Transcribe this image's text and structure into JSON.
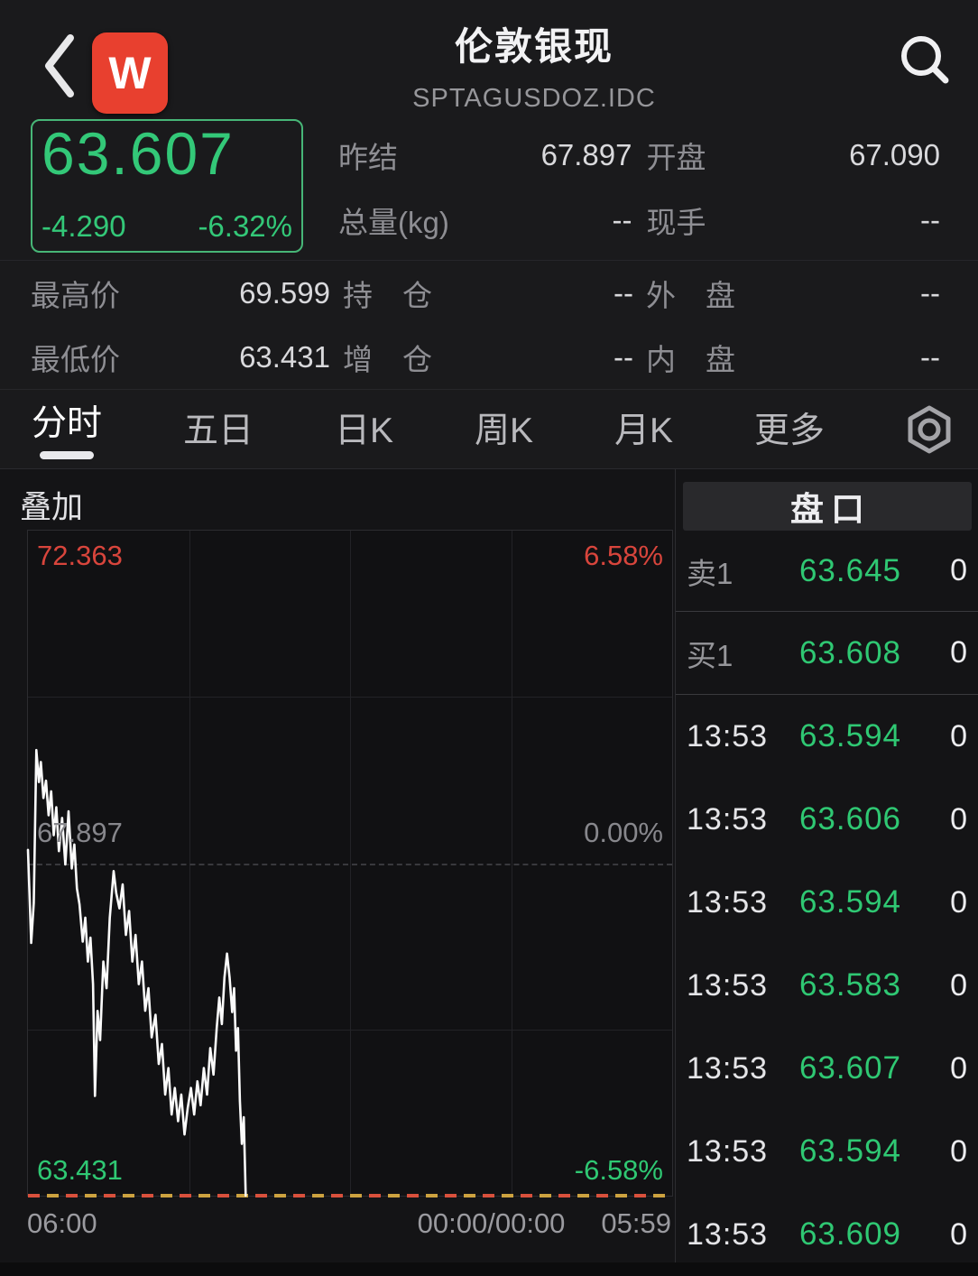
{
  "header": {
    "title": "伦敦银现",
    "symbol": "SPTAGUSDOZ.IDC",
    "logo_text": "W"
  },
  "quote": {
    "last": "63.607",
    "change": "-4.290",
    "change_pct": "-6.32%"
  },
  "stats": {
    "r1": [
      {
        "l": "昨结",
        "v": "67.897"
      },
      {
        "l": "开盘",
        "v": "67.090"
      }
    ],
    "r2": [
      {
        "l": "总量(kg)",
        "v": "--"
      },
      {
        "l": "现手",
        "v": "--"
      }
    ],
    "r3": [
      {
        "l": "最高价",
        "v": "69.599"
      },
      {
        "l": "持　仓",
        "v": "--"
      },
      {
        "l": "外　盘",
        "v": "--"
      }
    ],
    "r4": [
      {
        "l": "最低价",
        "v": "63.431"
      },
      {
        "l": "增　仓",
        "v": "--"
      },
      {
        "l": "内　盘",
        "v": "--"
      }
    ]
  },
  "tabs": {
    "items": [
      "分时",
      "五日",
      "日K",
      "周K",
      "月K",
      "更多"
    ],
    "active": "分时"
  },
  "chart": {
    "overlay_button": "叠加",
    "labels": {
      "max_price": "72.363",
      "max_pct": "6.58%",
      "mid_price": "67.897",
      "mid_pct": "0.00%",
      "min_price": "63.431",
      "min_pct": "-6.58%"
    },
    "x_axis": [
      "06:00",
      "00:00/00:00",
      "05:59"
    ],
    "chart_data": {
      "type": "line",
      "title": "分时 intraday line",
      "ylim": [
        63.431,
        72.363
      ],
      "prev_close": 67.897,
      "pct_range": [
        "-6.58%",
        "6.58%"
      ],
      "series_note": "points are [x,y] in 0-1000 chart fractions, y from top (72.363) to bottom (63.431)",
      "points": [
        [
          0,
          480
        ],
        [
          5,
          620
        ],
        [
          9,
          560
        ],
        [
          13,
          330
        ],
        [
          17,
          378
        ],
        [
          20,
          348
        ],
        [
          24,
          402
        ],
        [
          28,
          376
        ],
        [
          32,
          428
        ],
        [
          36,
          392
        ],
        [
          40,
          458
        ],
        [
          44,
          416
        ],
        [
          48,
          482
        ],
        [
          53,
          432
        ],
        [
          58,
          502
        ],
        [
          63,
          422
        ],
        [
          68,
          508
        ],
        [
          72,
          472
        ],
        [
          76,
          538
        ],
        [
          80,
          562
        ],
        [
          85,
          618
        ],
        [
          89,
          582
        ],
        [
          93,
          648
        ],
        [
          97,
          612
        ],
        [
          101,
          682
        ],
        [
          104,
          850
        ],
        [
          108,
          722
        ],
        [
          112,
          766
        ],
        [
          117,
          648
        ],
        [
          122,
          688
        ],
        [
          127,
          582
        ],
        [
          133,
          512
        ],
        [
          137,
          545
        ],
        [
          142,
          568
        ],
        [
          147,
          532
        ],
        [
          152,
          608
        ],
        [
          157,
          572
        ],
        [
          162,
          648
        ],
        [
          167,
          608
        ],
        [
          172,
          682
        ],
        [
          177,
          648
        ],
        [
          182,
          722
        ],
        [
          187,
          688
        ],
        [
          192,
          762
        ],
        [
          198,
          728
        ],
        [
          203,
          802
        ],
        [
          208,
          772
        ],
        [
          213,
          848
        ],
        [
          218,
          808
        ],
        [
          223,
          878
        ],
        [
          228,
          838
        ],
        [
          233,
          888
        ],
        [
          238,
          848
        ],
        [
          243,
          908
        ],
        [
          248,
          868
        ],
        [
          253,
          838
        ],
        [
          258,
          878
        ],
        [
          263,
          828
        ],
        [
          268,
          864
        ],
        [
          273,
          808
        ],
        [
          278,
          848
        ],
        [
          283,
          778
        ],
        [
          288,
          818
        ],
        [
          293,
          748
        ],
        [
          297,
          702
        ],
        [
          301,
          742
        ],
        [
          305,
          672
        ],
        [
          309,
          636
        ],
        [
          313,
          672
        ],
        [
          317,
          724
        ],
        [
          320,
          688
        ],
        [
          323,
          782
        ],
        [
          326,
          748
        ],
        [
          329,
          858
        ],
        [
          332,
          922
        ],
        [
          335,
          882
        ],
        [
          338,
          1000
        ]
      ]
    }
  },
  "order_book": {
    "title": "盘口",
    "levels": [
      {
        "label": "卖1",
        "price": "63.645",
        "vol": "0"
      },
      {
        "label": "买1",
        "price": "63.608",
        "vol": "0"
      }
    ],
    "ticks": [
      {
        "time": "13:53",
        "price": "63.594",
        "vol": "0"
      },
      {
        "time": "13:53",
        "price": "63.606",
        "vol": "0"
      },
      {
        "time": "13:53",
        "price": "63.594",
        "vol": "0"
      },
      {
        "time": "13:53",
        "price": "63.583",
        "vol": "0"
      },
      {
        "time": "13:53",
        "price": "63.607",
        "vol": "0"
      },
      {
        "time": "13:53",
        "price": "63.594",
        "vol": "0"
      },
      {
        "time": "13:53",
        "price": "63.609",
        "vol": "0"
      }
    ]
  },
  "colors": {
    "up_down_green": "#2fc873",
    "alert_red": "#d8453c",
    "logo_red": "#e8402f",
    "line_white": "#fafafa"
  }
}
